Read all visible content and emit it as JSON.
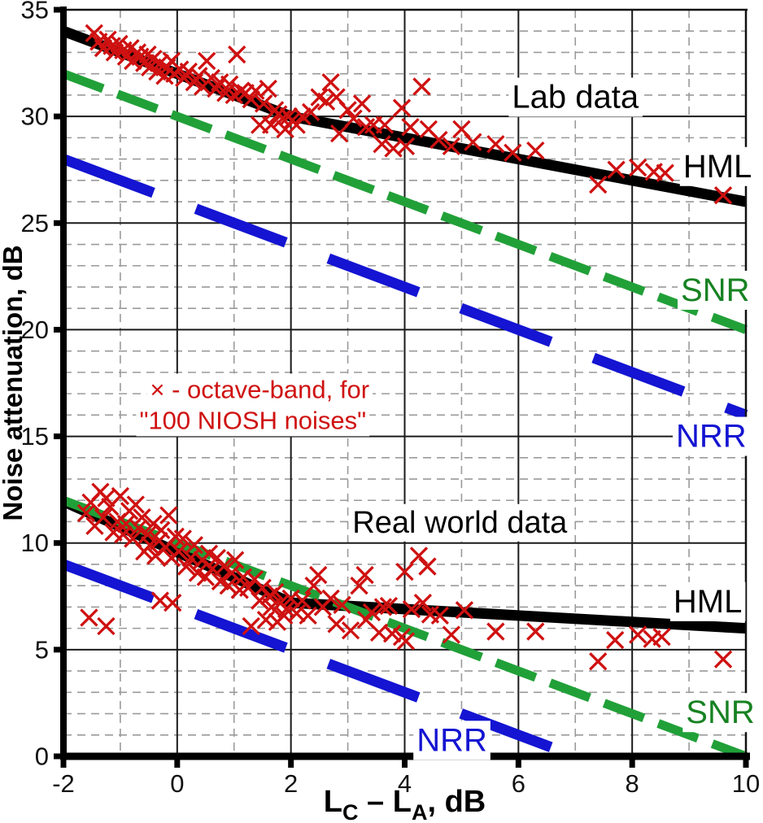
{
  "chart_data": {
    "type": "scatter",
    "title": "",
    "ylabel": "Noise attenuation, dB",
    "xlabel_plain": "Lc – La, dB",
    "xlabel_parts": [
      {
        "text": "L",
        "sub": false
      },
      {
        "text": "C",
        "sub": true
      },
      {
        "text": " – L",
        "sub": false
      },
      {
        "text": "A",
        "sub": true
      },
      {
        "text": ", dB",
        "sub": false
      }
    ],
    "xlim": [
      -2,
      10
    ],
    "ylim": [
      0,
      35
    ],
    "x_ticks": [
      -2,
      0,
      2,
      4,
      6,
      8,
      10
    ],
    "y_ticks": [
      0,
      5,
      10,
      15,
      20,
      25,
      30,
      35
    ],
    "grid": {
      "minor_step": 1,
      "major_step": 5,
      "minor_color": "#9a9a9a",
      "major_color": "#1a1a1a",
      "minor_dashed": true
    },
    "colors": {
      "hml": "#000000",
      "snr_line": "#21a038",
      "snr_text": "#178222",
      "nrr": "#1414d2",
      "scatter": "#cf1111"
    },
    "legend": {
      "color": "#cf1111",
      "size": 31,
      "lines": [
        {
          "text": "× - octave-band, for",
          "x": 1.45,
          "y": 17.2
        },
        {
          "text": "\"100 NIOSH noises\"",
          "x": 1.33,
          "y": 15.75
        }
      ]
    },
    "annotations": [
      {
        "id": "lab-data",
        "text": "Lab data",
        "x": 7.0,
        "y": 30.9,
        "size": 40,
        "color": "#000000"
      },
      {
        "id": "hml-lab",
        "text": "HML",
        "x": 9.5,
        "y": 27.65,
        "size": 40,
        "color": "#000000"
      },
      {
        "id": "snr-lab",
        "text": "SNR",
        "x": 9.46,
        "y": 21.85,
        "size": 40,
        "color": "#178222"
      },
      {
        "id": "nrr-lab",
        "text": "NRR",
        "x": 9.39,
        "y": 15.0,
        "size": 40,
        "color": "#1414d2"
      },
      {
        "id": "real-world-data",
        "text": "Real world data",
        "x": 4.97,
        "y": 10.95,
        "size": 38,
        "color": "#000000"
      },
      {
        "id": "hml-real",
        "text": "HML",
        "x": 9.33,
        "y": 7.25,
        "size": 40,
        "color": "#000000"
      },
      {
        "id": "snr-real",
        "text": "SNR",
        "x": 9.55,
        "y": 2.05,
        "size": 40,
        "color": "#178222"
      },
      {
        "id": "nrr-real",
        "text": "NRR",
        "x": 4.83,
        "y": 0.75,
        "size": 40,
        "color": "#1414d2"
      }
    ],
    "series": [
      {
        "name": "HML (lab)",
        "color": "#000000",
        "style": "solid",
        "width": 13,
        "points": [
          [
            -2,
            34
          ],
          [
            2,
            30
          ],
          [
            10,
            26
          ]
        ]
      },
      {
        "name": "SNR (lab)",
        "color": "#21a038",
        "style": "dash",
        "width": 11,
        "points": [
          [
            -2,
            32
          ],
          [
            10,
            20
          ]
        ]
      },
      {
        "name": "NRR (lab)",
        "color": "#1414d2",
        "style": "longdash",
        "width": 13,
        "points": [
          [
            -2,
            28
          ],
          [
            10,
            16
          ]
        ]
      },
      {
        "name": "HML (real world)",
        "color": "#000000",
        "style": "solid",
        "width": 13,
        "points": [
          [
            -2,
            11.95
          ],
          [
            2,
            7.2
          ],
          [
            10,
            6.0
          ]
        ]
      },
      {
        "name": "SNR (real world)",
        "color": "#21a038",
        "style": "dash",
        "width": 11,
        "points": [
          [
            -2,
            12
          ],
          [
            10,
            0
          ]
        ]
      },
      {
        "name": "NRR (real world)",
        "color": "#1414d2",
        "style": "longdash",
        "width": 13,
        "points": [
          [
            -2,
            9
          ],
          [
            7,
            0
          ]
        ]
      }
    ],
    "scatter": {
      "marker": "x",
      "color": "#cf1111",
      "lab_points": [
        [
          -1.46,
          33.9
        ],
        [
          -1.38,
          33.5
        ],
        [
          -1.3,
          33.2
        ],
        [
          -1.22,
          33.6
        ],
        [
          -1.15,
          33.3
        ],
        [
          -1.1,
          33.0
        ],
        [
          -1.02,
          33.4
        ],
        [
          -0.95,
          33.1
        ],
        [
          -0.9,
          32.8
        ],
        [
          -0.82,
          33.2
        ],
        [
          -0.78,
          32.6
        ],
        [
          -0.7,
          33.0
        ],
        [
          -0.65,
          32.8
        ],
        [
          -0.58,
          32.5
        ],
        [
          -0.52,
          32.9
        ],
        [
          -0.48,
          32.3
        ],
        [
          -0.42,
          32.7
        ],
        [
          -0.35,
          32.1
        ],
        [
          -0.3,
          32.5
        ],
        [
          -0.22,
          31.9
        ],
        [
          -0.18,
          32.3
        ],
        [
          -0.1,
          32.6
        ],
        [
          -0.05,
          32.0
        ],
        [
          0.05,
          32.2
        ],
        [
          0.12,
          31.8
        ],
        [
          0.2,
          32.1
        ],
        [
          0.3,
          31.6
        ],
        [
          0.38,
          31.9
        ],
        [
          0.45,
          31.4
        ],
        [
          0.52,
          32.6
        ],
        [
          0.6,
          31.8
        ],
        [
          0.68,
          31.3
        ],
        [
          0.75,
          31.6
        ],
        [
          0.85,
          31.1
        ],
        [
          0.92,
          31.5
        ],
        [
          1.0,
          31.0
        ],
        [
          1.05,
          32.9
        ],
        [
          1.12,
          31.2
        ],
        [
          1.2,
          31.1
        ],
        [
          1.3,
          30.8
        ],
        [
          1.38,
          31.2
        ],
        [
          1.45,
          29.6
        ],
        [
          1.52,
          30.6
        ],
        [
          1.6,
          31.3
        ],
        [
          1.65,
          29.6
        ],
        [
          1.72,
          30.3
        ],
        [
          1.78,
          30.1
        ],
        [
          1.85,
          29.9
        ],
        [
          1.9,
          29.4
        ],
        [
          1.96,
          30.0
        ],
        [
          2.02,
          29.8
        ],
        [
          2.1,
          29.6
        ],
        [
          2.2,
          30.0
        ],
        [
          2.35,
          30.2
        ],
        [
          2.5,
          30.9
        ],
        [
          2.62,
          30.7
        ],
        [
          2.7,
          31.6
        ],
        [
          2.8,
          30.9
        ],
        [
          2.85,
          29.2
        ],
        [
          3.0,
          30.3
        ],
        [
          3.1,
          29.9
        ],
        [
          3.25,
          30.6
        ],
        [
          3.32,
          29.5
        ],
        [
          3.45,
          29.6
        ],
        [
          3.6,
          28.7
        ],
        [
          3.65,
          29.6
        ],
        [
          3.8,
          28.5
        ],
        [
          3.95,
          30.4
        ],
        [
          4.02,
          28.6
        ],
        [
          4.1,
          29.5
        ],
        [
          4.3,
          31.4
        ],
        [
          4.42,
          29.4
        ],
        [
          4.6,
          28.9
        ],
        [
          4.82,
          28.6
        ],
        [
          5.0,
          29.4
        ],
        [
          5.2,
          28.8
        ],
        [
          5.6,
          28.7
        ],
        [
          5.9,
          28.3
        ],
        [
          6.3,
          28.4
        ],
        [
          7.4,
          26.8
        ],
        [
          7.72,
          27.5
        ],
        [
          8.1,
          27.6
        ],
        [
          8.38,
          27.4
        ],
        [
          8.58,
          27.35
        ],
        [
          9.6,
          26.3
        ]
      ],
      "real_world_points": [
        [
          -1.6,
          11.4
        ],
        [
          -1.52,
          11.9
        ],
        [
          -1.45,
          10.8
        ],
        [
          -1.35,
          12.4
        ],
        [
          -1.3,
          11.2
        ],
        [
          -1.25,
          12.1
        ],
        [
          -1.18,
          11.7
        ],
        [
          -1.12,
          10.5
        ],
        [
          -1.05,
          11.0
        ],
        [
          -1.0,
          12.2
        ],
        [
          -0.95,
          10.4
        ],
        [
          -0.9,
          10.9
        ],
        [
          -0.84,
          11.5
        ],
        [
          -0.78,
          10.2
        ],
        [
          -0.73,
          11.8
        ],
        [
          -0.68,
          10.7
        ],
        [
          -0.62,
          11.2
        ],
        [
          -0.58,
          9.6
        ],
        [
          -0.52,
          10.4
        ],
        [
          -0.48,
          9.9
        ],
        [
          -0.42,
          10.9
        ],
        [
          -0.38,
          9.4
        ],
        [
          -0.32,
          10.1
        ],
        [
          -0.28,
          10.6
        ],
        [
          -0.3,
          7.3
        ],
        [
          -0.2,
          9.8
        ],
        [
          -0.15,
          11.3
        ],
        [
          -0.1,
          9.3
        ],
        [
          -0.08,
          7.2
        ],
        [
          -0.03,
          10.3
        ],
        [
          0.03,
          9.6
        ],
        [
          0.1,
          10.2
        ],
        [
          0.16,
          8.9
        ],
        [
          0.24,
          9.3
        ],
        [
          0.3,
          9.9
        ],
        [
          0.36,
          8.6
        ],
        [
          0.44,
          9.2
        ],
        [
          0.5,
          8.4
        ],
        [
          0.56,
          9.5
        ],
        [
          0.62,
          8.8
        ],
        [
          0.7,
          9.3
        ],
        [
          0.76,
          8.2
        ],
        [
          0.82,
          8.9
        ],
        [
          0.9,
          8.0
        ],
        [
          0.96,
          8.6
        ],
        [
          1.02,
          9.2
        ],
        [
          1.1,
          7.8
        ],
        [
          1.16,
          8.4
        ],
        [
          1.25,
          7.9
        ],
        [
          1.3,
          6.1
        ],
        [
          1.36,
          8.3
        ],
        [
          1.45,
          7.3
        ],
        [
          1.5,
          7.9
        ],
        [
          1.56,
          6.4
        ],
        [
          1.62,
          7.5
        ],
        [
          1.66,
          7.0
        ],
        [
          1.72,
          7.7
        ],
        [
          1.76,
          6.3
        ],
        [
          1.82,
          7.2
        ],
        [
          1.88,
          6.6
        ],
        [
          1.92,
          6.9
        ],
        [
          2.0,
          7.4
        ],
        [
          2.1,
          6.7
        ],
        [
          2.2,
          7.3
        ],
        [
          2.3,
          6.6
        ],
        [
          2.4,
          8.0
        ],
        [
          2.48,
          8.5
        ],
        [
          2.56,
          7.0
        ],
        [
          2.7,
          7.4
        ],
        [
          2.8,
          6.2
        ],
        [
          2.9,
          7.1
        ],
        [
          3.05,
          5.9
        ],
        [
          3.2,
          8.0
        ],
        [
          3.3,
          8.5
        ],
        [
          3.32,
          6.4
        ],
        [
          3.42,
          6.75
        ],
        [
          3.55,
          5.8
        ],
        [
          3.62,
          7.0
        ],
        [
          3.72,
          7.05
        ],
        [
          3.78,
          5.75
        ],
        [
          3.95,
          5.6
        ],
        [
          4.0,
          8.65
        ],
        [
          4.02,
          5.4
        ],
        [
          4.12,
          6.9
        ],
        [
          4.25,
          9.4
        ],
        [
          4.32,
          7.2
        ],
        [
          4.4,
          8.9
        ],
        [
          4.45,
          6.65
        ],
        [
          4.62,
          6.6
        ],
        [
          4.82,
          5.7
        ],
        [
          5.05,
          6.85
        ],
        [
          5.6,
          5.85
        ],
        [
          6.3,
          5.85
        ],
        [
          7.4,
          4.45
        ],
        [
          7.7,
          5.45
        ],
        [
          8.1,
          5.7
        ],
        [
          8.35,
          5.5
        ],
        [
          8.52,
          5.6
        ],
        [
          9.6,
          4.55
        ],
        [
          -1.55,
          6.5
        ],
        [
          -1.25,
          6.1
        ]
      ]
    }
  }
}
